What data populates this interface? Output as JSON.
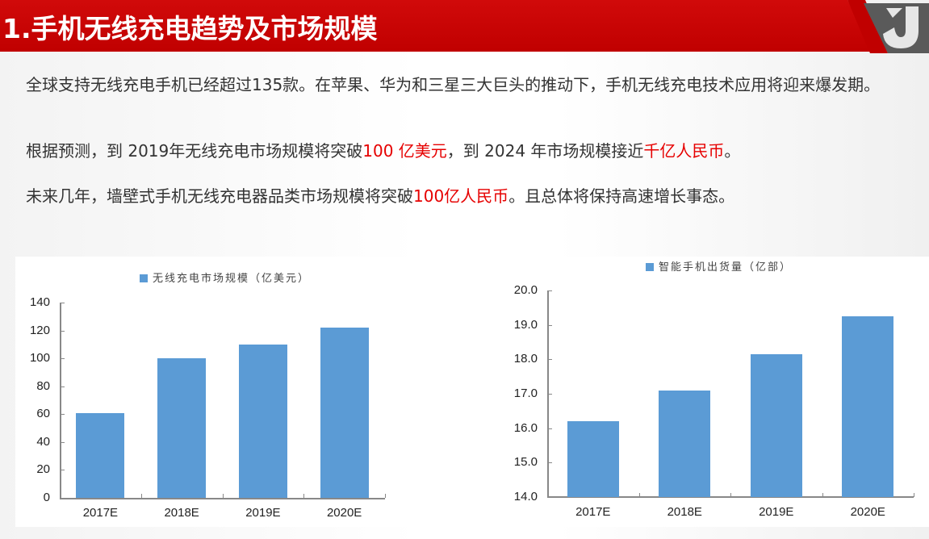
{
  "header": {
    "title": "1.手机无线充电趋势及市场规模",
    "accent_color": "#c00000",
    "logo_icon": "company-logo-icon"
  },
  "body": {
    "paragraph1": "全球支持无线充电手机已经超过135款。在苹果、华为和三星三大巨头的推动下，手机无线充电技术应用将迎来爆发期。",
    "paragraph2": {
      "part1": "根据预测，到 2019年无线充电市场规模将突破",
      "highlight1": "100 亿美元",
      "part2": "，到 2024 年市场规模接近",
      "highlight2": "千亿人民币",
      "part3": "。"
    },
    "paragraph3": {
      "part1": "未来几年，墙壁式手机无线充电器品类市场规模将突破",
      "highlight1": "100亿人民币",
      "part2": "。且总体将保持高速增长事态。"
    },
    "highlight_color": "#e60000"
  },
  "chart_data": [
    {
      "type": "bar",
      "title": "",
      "legend": [
        "无线充电市场规模（亿美元）"
      ],
      "categories": [
        "2017E",
        "2018E",
        "2019E",
        "2020E"
      ],
      "series": [
        {
          "name": "无线充电市场规模（亿美元）",
          "values": [
            61,
            100,
            110,
            122
          ],
          "color": "#5b9bd5"
        }
      ],
      "yticks": [
        "0",
        "20",
        "40",
        "60",
        "80",
        "100",
        "120",
        "140"
      ],
      "ylim": [
        0,
        140
      ],
      "xlabel": "",
      "ylabel": "",
      "grid": false,
      "legend_position": "top"
    },
    {
      "type": "bar",
      "title": "",
      "legend": [
        "智能手机出货量（亿部）"
      ],
      "categories": [
        "2017E",
        "2018E",
        "2019E",
        "2020E"
      ],
      "series": [
        {
          "name": "智能手机出货量（亿部）",
          "values": [
            16.2,
            17.1,
            18.15,
            19.25
          ],
          "color": "#5b9bd5"
        }
      ],
      "yticks": [
        "14.0",
        "15.0",
        "16.0",
        "17.0",
        "18.0",
        "19.0",
        "20.0"
      ],
      "ylim": [
        14,
        20
      ],
      "xlabel": "",
      "ylabel": "",
      "grid": false,
      "legend_position": "top"
    }
  ]
}
